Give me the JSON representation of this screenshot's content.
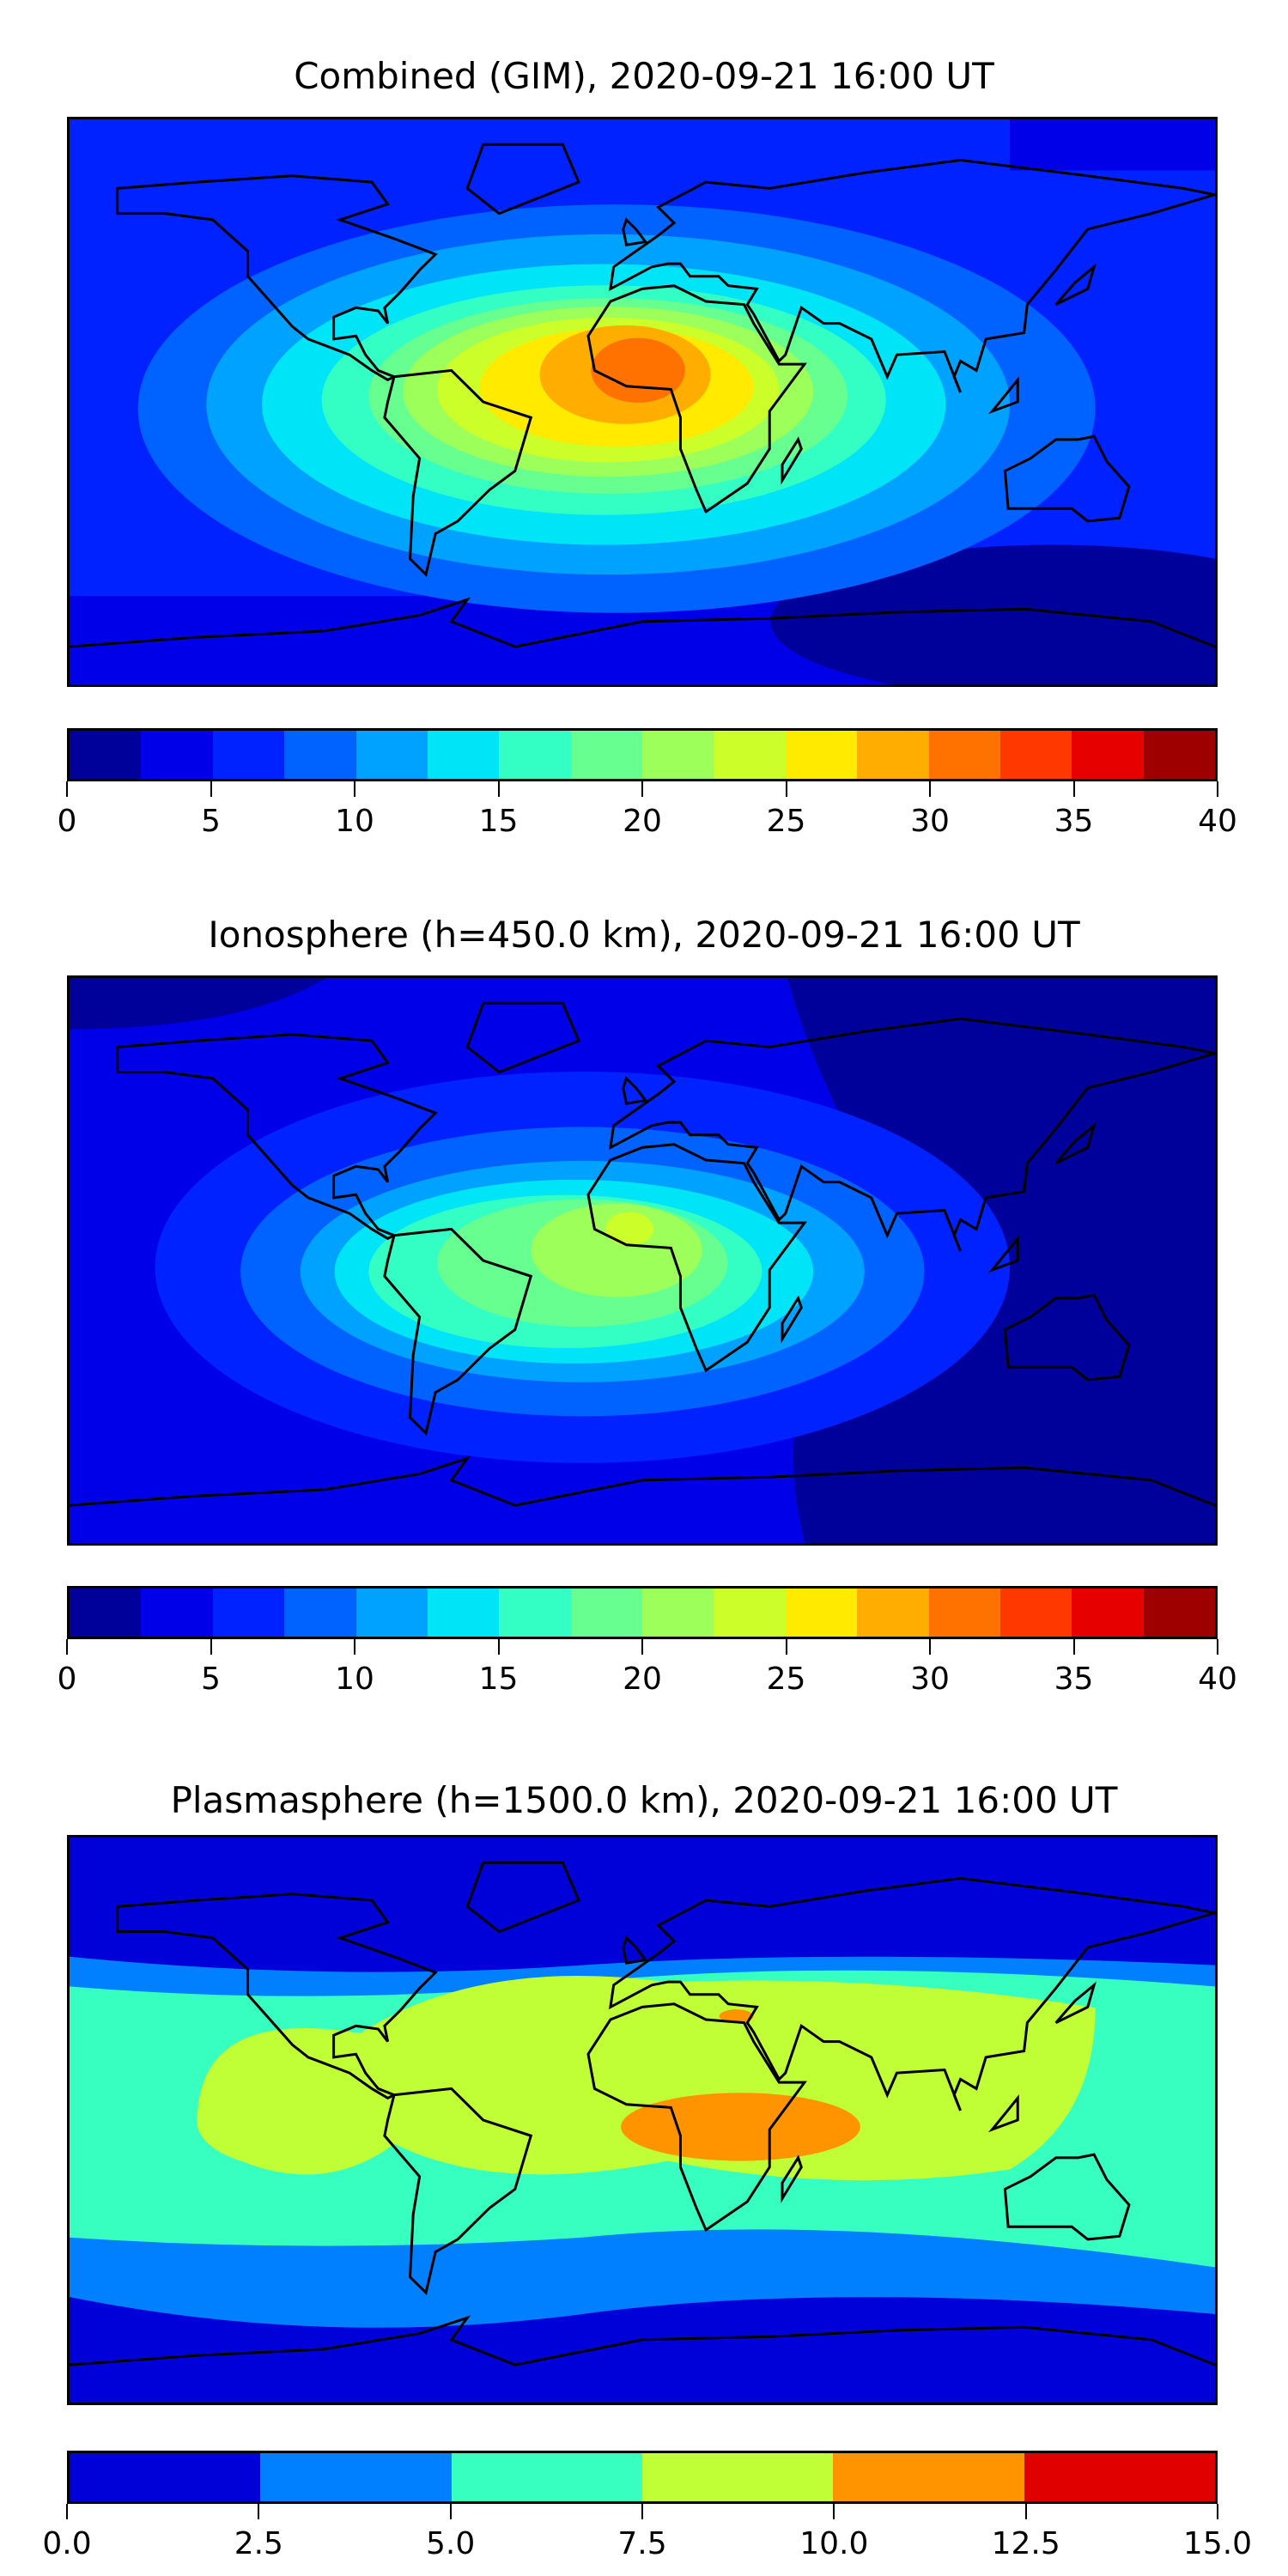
{
  "chart_data": [
    {
      "type": "heatmap",
      "title": "Combined (GIM), 2020-09-21 16:00 UT",
      "colorbar": {
        "ticks": [
          "0",
          "5",
          "10",
          "15",
          "20",
          "25",
          "30",
          "35",
          "40"
        ],
        "range": [
          0,
          40
        ],
        "levels": [
          0,
          2.5,
          5,
          7.5,
          10,
          12.5,
          15,
          17.5,
          20,
          22.5,
          25,
          27.5,
          30,
          32.5,
          35,
          37.5,
          40
        ],
        "colors": [
          "#00009a",
          "#0000e8",
          "#0022ff",
          "#0062ff",
          "#00a2ff",
          "#00e4f8",
          "#33ffc4",
          "#66ff90",
          "#9cff5a",
          "#ccff2a",
          "#ffea00",
          "#ffae00",
          "#ff7200",
          "#ff3800",
          "#e60000",
          "#9e0000"
        ]
      },
      "peak_region": "South America / Africa, max ~30-32.5"
    },
    {
      "type": "heatmap",
      "title": "Ionosphere  (h=450.0 km), 2020-09-21 16:00 UT",
      "colorbar": {
        "ticks": [
          "0",
          "5",
          "10",
          "15",
          "20",
          "25",
          "30",
          "35",
          "40"
        ],
        "range": [
          0,
          40
        ],
        "levels": [
          0,
          2.5,
          5,
          7.5,
          10,
          12.5,
          15,
          17.5,
          20,
          22.5,
          25,
          27.5,
          30,
          32.5,
          35,
          37.5,
          40
        ],
        "colors": [
          "#00009a",
          "#0000e8",
          "#0022ff",
          "#0062ff",
          "#00a2ff",
          "#00e4f8",
          "#33ffc4",
          "#66ff90",
          "#9cff5a",
          "#ccff2a",
          "#ffea00",
          "#ffae00",
          "#ff7200",
          "#ff3800",
          "#e60000",
          "#9e0000"
        ]
      },
      "peak_region": "Atlantic / West Africa, max ~22.5-25"
    },
    {
      "type": "heatmap",
      "title": "Plasmasphere (h=1500.0 km), 2020-09-21 16:00 UT",
      "colorbar": {
        "ticks": [
          "0.0",
          "2.5",
          "5.0",
          "7.5",
          "10.0",
          "12.5",
          "15.0"
        ],
        "range": [
          0,
          15
        ],
        "levels": [
          0,
          2.5,
          5,
          7.5,
          10,
          12.5,
          15
        ],
        "colors": [
          "#0000d8",
          "#0080ff",
          "#36ffc0",
          "#c0ff36",
          "#ff9400",
          "#e00000"
        ]
      },
      "peak_region": "Central Africa, max ~10-12.5"
    }
  ]
}
